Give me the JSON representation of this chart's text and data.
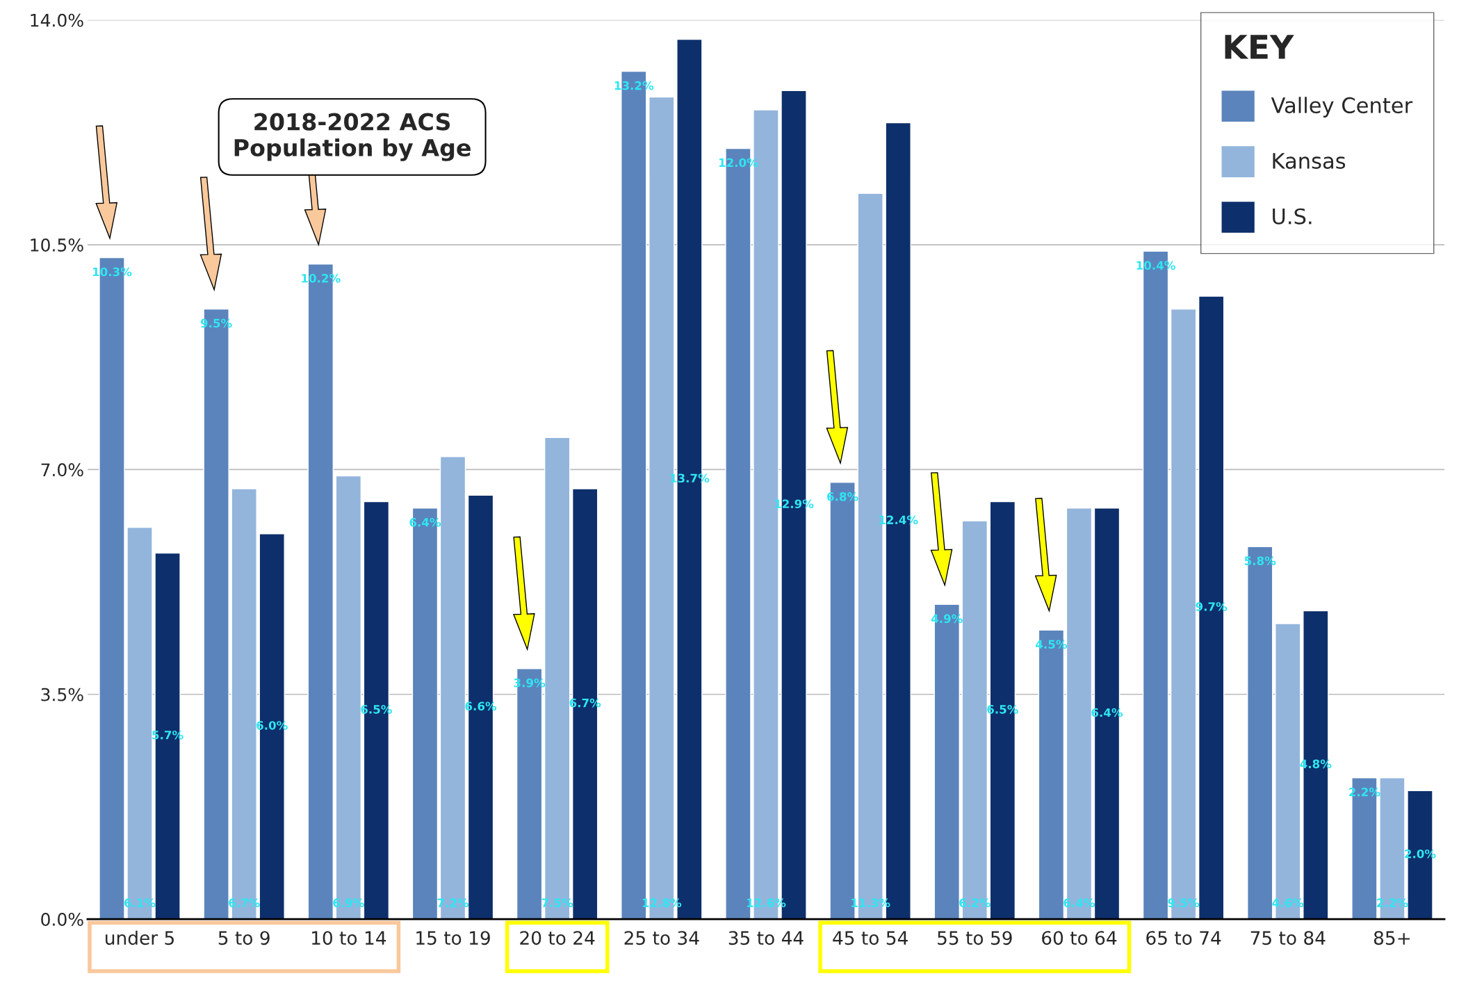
{
  "chart_data": {
    "type": "bar",
    "title": "2018-2022 ACS\nPopulation by Age",
    "categories": [
      "under 5",
      "5 to 9",
      "10 to 14",
      "15 to 19",
      "20 to 24",
      "25 to 34",
      "35 to 44",
      "45 to 54",
      "55 to 59",
      "60 to 64",
      "65 to 74",
      "75 to 84",
      "85+"
    ],
    "series": [
      {
        "name": "Valley Center",
        "color": "#5b84bc",
        "values": [
          10.3,
          9.5,
          10.2,
          6.4,
          3.9,
          13.2,
          12.0,
          6.8,
          4.9,
          4.5,
          10.4,
          5.8,
          2.2
        ],
        "value_labels": [
          "10.3%",
          "9.5%",
          "10.2%",
          "6.4%",
          "3.9%",
          "13.2%",
          "12.0%",
          "6.8%",
          "4.9%",
          "4.5%",
          "10.4%",
          "5.8%",
          "2.2%"
        ]
      },
      {
        "name": "Kansas",
        "color": "#93b5dc",
        "values": [
          6.1,
          6.7,
          6.9,
          7.2,
          7.5,
          12.8,
          12.6,
          11.3,
          6.2,
          6.4,
          9.5,
          4.6,
          2.2
        ],
        "value_labels": [
          "6.1%",
          "6.7%",
          "6.9%",
          "7.2%",
          "7.5%",
          "12.8%",
          "12.6%",
          "11.3%",
          "6.2%",
          "6.4%",
          "9.5%",
          "4.6%",
          "2.2%"
        ]
      },
      {
        "name": "U.S.",
        "color": "#0d2f6b",
        "values": [
          5.7,
          6.0,
          6.5,
          6.6,
          6.7,
          13.7,
          12.9,
          12.4,
          6.5,
          6.4,
          9.7,
          4.8,
          2.0
        ],
        "value_labels": [
          "5.7%",
          "6.0%",
          "6.5%",
          "6.6%",
          "6.7%",
          "13.7%",
          "12.9%",
          "12.4%",
          "6.5%",
          "6.4%",
          "9.7%",
          "4.8%",
          "2.0%"
        ]
      }
    ],
    "ylim": [
      0,
      14
    ],
    "yticks": [
      {
        "value": 0,
        "label": "0.0%"
      },
      {
        "value": 3.5,
        "label": "3.5%"
      },
      {
        "value": 7,
        "label": "7.0%"
      },
      {
        "value": 10.5,
        "label": "10.5%"
      },
      {
        "value": 14,
        "label": "14.0%"
      }
    ],
    "grid": "y",
    "legend": "top right",
    "legend_title": "KEY"
  }
}
